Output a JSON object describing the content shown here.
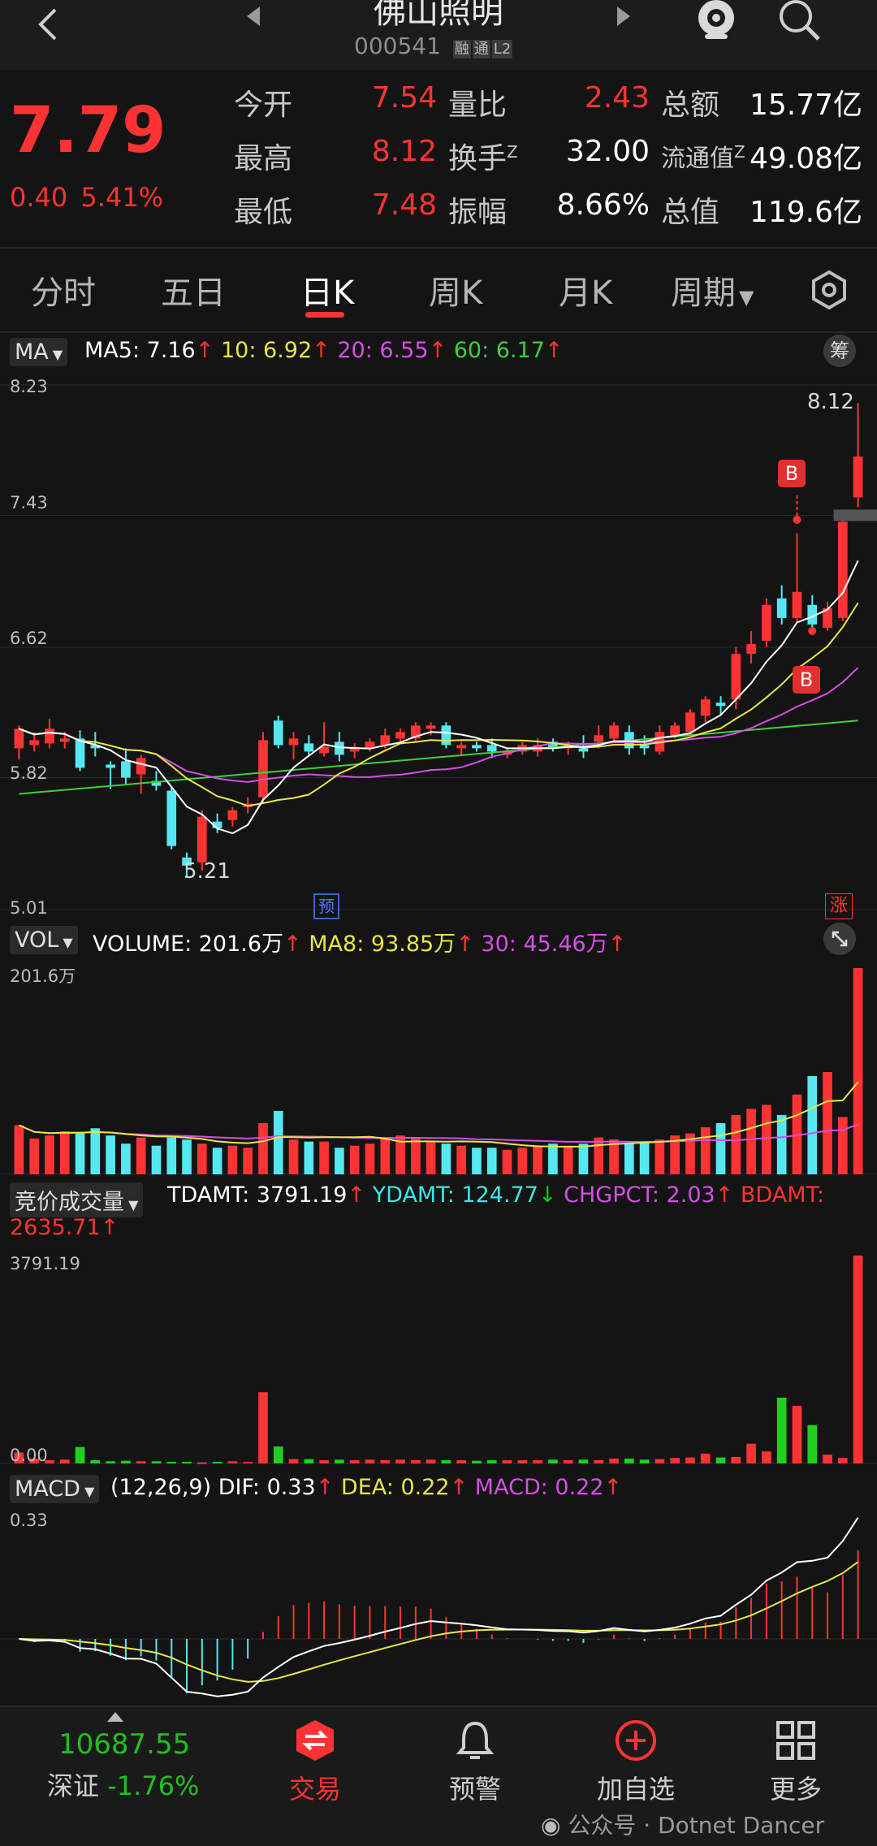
{
  "header": {
    "stock_name": "佛山照明",
    "stock_code": "000541",
    "badges": [
      "融",
      "通",
      "L2"
    ],
    "icons": [
      "back-icon",
      "prev-stock-icon",
      "next-stock-icon",
      "live-camera-icon",
      "search-icon"
    ]
  },
  "quote": {
    "price": "7.79",
    "change": "0.40",
    "change_pct": "5.41%",
    "fields": [
      {
        "label": "今开",
        "value": "7.54",
        "color": "#ff3333"
      },
      {
        "label": "最高",
        "value": "8.12",
        "color": "#ff3333"
      },
      {
        "label": "最低",
        "value": "7.48",
        "color": "#ff3333"
      },
      {
        "label": "量比",
        "value": "2.43",
        "color": "#ff3333"
      },
      {
        "label": "换手",
        "value": "32.00",
        "color": "#ffffff"
      },
      {
        "label": "振幅",
        "value": "8.66%",
        "color": "#ffffff"
      },
      {
        "label": "总额",
        "value": "15.77亿",
        "color": "#ffffff"
      },
      {
        "label": "流通值",
        "value": "49.08亿",
        "color": "#ffffff"
      },
      {
        "label": "总值",
        "value": "119.6亿",
        "color": "#ffffff"
      }
    ],
    "superscript_z": "Z"
  },
  "tabs": {
    "items": [
      "分时",
      "五日",
      "日K",
      "周K",
      "月K",
      "周期"
    ],
    "active": "日K"
  },
  "ma_panel": {
    "selector": "MA",
    "ma5": "MA5: 7.16",
    "ma10": "10: 6.92",
    "ma20": "20: 6.55",
    "ma60": "60: 6.17",
    "chip_button": "筹",
    "y_labels": [
      "8.23",
      "7.43",
      "6.62",
      "5.82",
      "5.01"
    ],
    "high_label": "8.12",
    "low_label": "5.21",
    "buy_marker": "B",
    "pre_marker": "预",
    "limit_marker": "涨",
    "colors": {
      "ma5": "#ffffff",
      "ma10": "#e6e64a",
      "ma20": "#d64ee6",
      "ma60": "#3ecf3e"
    }
  },
  "vol_panel": {
    "selector": "VOL",
    "volume": "VOLUME: 201.6万",
    "ma8": "MA8: 93.85万",
    "ma30": "30: 45.46万",
    "y_top": "201.6万"
  },
  "auction_panel": {
    "selector": "竞价成交量",
    "tdamt": "TDAMT: 3791.19",
    "ydamt": "YDAMT: 124.77",
    "chgpct": "CHGPCT: 2.03",
    "bdamt_label": "BDAMT:",
    "bdamt_value": "2635.71",
    "y_top": "3791.19",
    "y_bottom": "0.00"
  },
  "macd_panel": {
    "selector": "MACD",
    "params": "(12,26,9)",
    "dif": "DIF: 0.33",
    "dea": "DEA: 0.22",
    "macd": "MACD: 0.22",
    "y_top": "0.33"
  },
  "bottom_nav": {
    "index_value": "10687.55",
    "index_name": "深证",
    "index_change": "-1.76%",
    "items": [
      "交易",
      "预警",
      "加自选",
      "更多"
    ],
    "watermark": "公众号 · Dotnet Dancer"
  },
  "chart_data": {
    "type": "candlestick",
    "candles": [
      {
        "o": 6.0,
        "h": 6.14,
        "l": 5.93,
        "c": 6.12
      },
      {
        "o": 6.02,
        "h": 6.1,
        "l": 5.98,
        "c": 6.05
      },
      {
        "o": 6.03,
        "h": 6.18,
        "l": 6.0,
        "c": 6.12
      },
      {
        "o": 6.04,
        "h": 6.1,
        "l": 6.0,
        "c": 6.06
      },
      {
        "o": 6.06,
        "h": 6.11,
        "l": 5.86,
        "c": 5.88
      },
      {
        "o": 6.02,
        "h": 6.1,
        "l": 5.95,
        "c": 6.0
      },
      {
        "o": 5.9,
        "h": 5.92,
        "l": 5.75,
        "c": 5.88
      },
      {
        "o": 5.92,
        "h": 6.0,
        "l": 5.78,
        "c": 5.82
      },
      {
        "o": 5.84,
        "h": 5.96,
        "l": 5.72,
        "c": 5.94
      },
      {
        "o": 5.8,
        "h": 5.86,
        "l": 5.74,
        "c": 5.77
      },
      {
        "o": 5.74,
        "h": 5.76,
        "l": 5.38,
        "c": 5.4
      },
      {
        "o": 5.33,
        "h": 5.36,
        "l": 5.21,
        "c": 5.28
      },
      {
        "o": 5.3,
        "h": 5.62,
        "l": 5.25,
        "c": 5.58
      },
      {
        "o": 5.55,
        "h": 5.6,
        "l": 5.48,
        "c": 5.51
      },
      {
        "o": 5.56,
        "h": 5.64,
        "l": 5.52,
        "c": 5.62
      },
      {
        "o": 5.64,
        "h": 5.7,
        "l": 5.6,
        "c": 5.66
      },
      {
        "o": 5.7,
        "h": 6.1,
        "l": 5.66,
        "c": 6.05
      },
      {
        "o": 6.17,
        "h": 6.2,
        "l": 6.0,
        "c": 6.02
      },
      {
        "o": 6.02,
        "h": 6.1,
        "l": 5.93,
        "c": 6.06
      },
      {
        "o": 6.03,
        "h": 6.08,
        "l": 5.96,
        "c": 5.98
      },
      {
        "o": 5.97,
        "h": 6.16,
        "l": 5.95,
        "c": 6.01
      },
      {
        "o": 6.04,
        "h": 6.1,
        "l": 5.92,
        "c": 5.96
      },
      {
        "o": 5.98,
        "h": 6.03,
        "l": 5.94,
        "c": 6.0
      },
      {
        "o": 6.0,
        "h": 6.06,
        "l": 5.98,
        "c": 6.04
      },
      {
        "o": 6.02,
        "h": 6.12,
        "l": 6.0,
        "c": 6.08
      },
      {
        "o": 6.06,
        "h": 6.12,
        "l": 6.04,
        "c": 6.1
      },
      {
        "o": 6.06,
        "h": 6.16,
        "l": 6.04,
        "c": 6.14
      },
      {
        "o": 6.12,
        "h": 6.16,
        "l": 6.08,
        "c": 6.14
      },
      {
        "o": 6.14,
        "h": 6.16,
        "l": 6.0,
        "c": 6.02
      },
      {
        "o": 6.0,
        "h": 6.04,
        "l": 5.96,
        "c": 6.02
      },
      {
        "o": 6.02,
        "h": 6.04,
        "l": 5.98,
        "c": 6.0
      },
      {
        "o": 6.02,
        "h": 6.06,
        "l": 5.94,
        "c": 5.98
      },
      {
        "o": 5.96,
        "h": 6.0,
        "l": 5.94,
        "c": 5.98
      },
      {
        "o": 5.98,
        "h": 6.04,
        "l": 5.96,
        "c": 6.02
      },
      {
        "o": 5.98,
        "h": 6.06,
        "l": 5.95,
        "c": 6.02
      },
      {
        "o": 6.04,
        "h": 6.06,
        "l": 5.98,
        "c": 6.0
      },
      {
        "o": 6.0,
        "h": 6.04,
        "l": 5.96,
        "c": 6.02
      },
      {
        "o": 6.0,
        "h": 6.08,
        "l": 5.94,
        "c": 5.98
      },
      {
        "o": 6.04,
        "h": 6.14,
        "l": 6.0,
        "c": 6.08
      },
      {
        "o": 6.06,
        "h": 6.16,
        "l": 6.04,
        "c": 6.14
      },
      {
        "o": 6.1,
        "h": 6.14,
        "l": 5.96,
        "c": 6.0
      },
      {
        "o": 6.02,
        "h": 6.08,
        "l": 5.96,
        "c": 6.0
      },
      {
        "o": 5.98,
        "h": 6.14,
        "l": 5.96,
        "c": 6.1
      },
      {
        "o": 6.08,
        "h": 6.16,
        "l": 6.06,
        "c": 6.14
      },
      {
        "o": 6.1,
        "h": 6.24,
        "l": 6.08,
        "c": 6.22
      },
      {
        "o": 6.2,
        "h": 6.32,
        "l": 6.16,
        "c": 6.3
      },
      {
        "o": 6.28,
        "h": 6.32,
        "l": 6.2,
        "c": 6.26
      },
      {
        "o": 6.3,
        "h": 6.62,
        "l": 6.24,
        "c": 6.58
      },
      {
        "o": 6.58,
        "h": 6.72,
        "l": 6.52,
        "c": 6.64
      },
      {
        "o": 6.66,
        "h": 6.92,
        "l": 6.62,
        "c": 6.88
      },
      {
        "o": 6.92,
        "h": 7.0,
        "l": 6.76,
        "c": 6.8
      },
      {
        "o": 6.8,
        "h": 7.32,
        "l": 6.78,
        "c": 6.96
      },
      {
        "o": 6.88,
        "h": 6.94,
        "l": 6.7,
        "c": 6.76
      },
      {
        "o": 6.74,
        "h": 6.9,
        "l": 6.72,
        "c": 6.86
      },
      {
        "o": 6.8,
        "h": 7.4,
        "l": 6.78,
        "c": 7.39
      },
      {
        "o": 7.54,
        "h": 8.12,
        "l": 7.48,
        "c": 7.79
      }
    ],
    "ma_current": {
      "ma5": 7.16,
      "ma10": 6.92,
      "ma20": 6.55,
      "ma60": 6.17
    },
    "price_axis": {
      "max": 8.23,
      "min": 5.01,
      "ticks": [
        8.23,
        7.43,
        6.62,
        5.82,
        5.01
      ]
    },
    "volume_wan": [
      48,
      35,
      38,
      42,
      40,
      45,
      38,
      30,
      36,
      28,
      36,
      34,
      30,
      26,
      28,
      26,
      50,
      62,
      34,
      32,
      32,
      26,
      28,
      30,
      36,
      38,
      36,
      32,
      30,
      28,
      26,
      26,
      24,
      26,
      28,
      30,
      28,
      30,
      36,
      34,
      30,
      32,
      34,
      38,
      40,
      46,
      50,
      58,
      64,
      68,
      58,
      78,
      96,
      100,
      56,
      201.6
    ],
    "volume_ma8_wan": 93.85,
    "volume_ma30_wan": 45.46,
    "volume_axis": {
      "max": 201.6
    },
    "auction_amt": [
      200,
      90,
      60,
      70,
      300,
      60,
      40,
      50,
      40,
      40,
      30,
      30,
      20,
      30,
      40,
      30,
      1300,
      310,
      80,
      80,
      60,
      70,
      60,
      70,
      60,
      70,
      60,
      70,
      60,
      60,
      50,
      60,
      60,
      60,
      60,
      70,
      60,
      70,
      60,
      90,
      90,
      70,
      80,
      100,
      110,
      180,
      110,
      120,
      360,
      220,
      1200,
      1050,
      700,
      160,
      100,
      3791.19
    ],
    "auction_axis": {
      "max": 3791.19,
      "min": 0.0
    },
    "macd": {
      "dif": 0.33,
      "dea": 0.22,
      "macd": 0.22,
      "axis_max": 0.33
    }
  }
}
